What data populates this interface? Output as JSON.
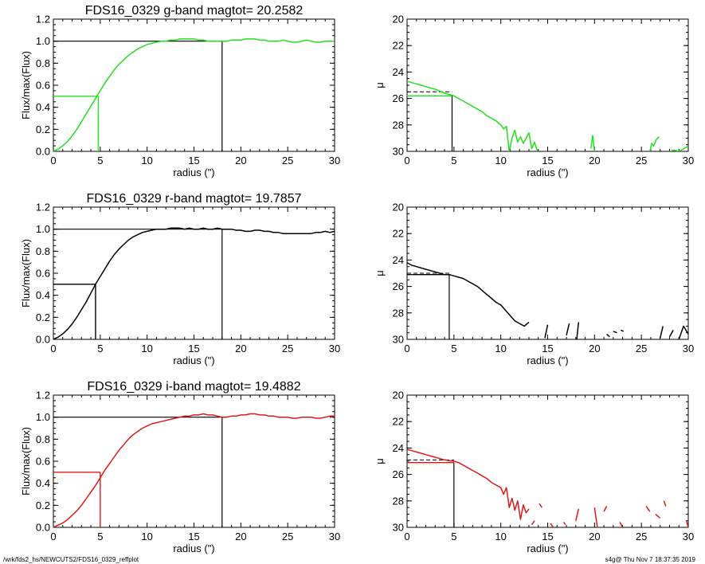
{
  "footer": {
    "path": "/wrk/fds2_hs/NEWCUTS2/FDS16_0329_reffplot",
    "stamp": "s4g@  Thu Nov  7 18:37:35 2019"
  },
  "chart_data": [
    {
      "type": "line",
      "panel": "growth-curve",
      "title": "FDS16_0329 g-band  magtot=     20.2582",
      "xlabel": "radius (\")",
      "ylabel": "Flux/max(Flux)",
      "xlim": [
        0,
        30
      ],
      "ylim": [
        0,
        1.2
      ],
      "xticks": [
        0,
        5,
        10,
        15,
        20,
        25,
        30
      ],
      "yticks": [
        0.0,
        0.2,
        0.4,
        0.6,
        0.8,
        1.0,
        1.2
      ],
      "ytick_labels": [
        "0.0",
        "0.2",
        "0.4",
        "0.6",
        "0.8",
        "1.0",
        "1.2"
      ],
      "color": "#22e01d",
      "x": [
        0,
        0.5,
        1,
        1.5,
        2,
        2.5,
        3,
        3.5,
        4,
        4.5,
        5,
        5.5,
        6,
        6.5,
        7,
        7.5,
        8,
        8.5,
        9,
        9.5,
        10,
        10.5,
        11,
        11.5,
        12,
        12.5,
        13,
        13.5,
        14,
        14.5,
        15,
        15.5,
        16,
        16.5,
        17,
        17.5,
        18,
        18.5,
        19,
        19.5,
        20,
        20.5,
        21,
        21.5,
        22,
        22.5,
        23,
        23.5,
        24,
        24.5,
        25,
        25.5,
        26,
        26.5,
        27,
        27.5,
        28,
        28.5,
        29,
        29.5,
        30
      ],
      "y": [
        0.0,
        0.02,
        0.05,
        0.09,
        0.14,
        0.2,
        0.27,
        0.34,
        0.41,
        0.48,
        0.55,
        0.62,
        0.68,
        0.74,
        0.79,
        0.83,
        0.87,
        0.9,
        0.93,
        0.95,
        0.97,
        0.98,
        0.99,
        1.0,
        1.0,
        1.01,
        1.01,
        1.02,
        1.02,
        1.02,
        1.02,
        1.01,
        1.01,
        1.0,
        1.0,
        1.0,
        1.0,
        1.0,
        1.01,
        1.01,
        1.01,
        1.02,
        1.02,
        1.02,
        1.01,
        1.01,
        1.0,
        1.0,
        1.0,
        1.01,
        1.0,
        0.99,
        0.99,
        1.0,
        1.01,
        1.0,
        0.99,
        0.99,
        1.0,
        1.0,
        1.0
      ],
      "half_light": {
        "r": 4.8,
        "f": 0.5
      },
      "total": {
        "r": 18.0,
        "f": 1.0
      }
    },
    {
      "type": "line",
      "panel": "surface-brightness",
      "title": "",
      "xlabel": "radius (\")",
      "ylabel": "μ",
      "xlim": [
        0,
        30
      ],
      "ylim": [
        30,
        20
      ],
      "yaxis": "inverted",
      "xticks": [
        0,
        5,
        10,
        15,
        20,
        25,
        30
      ],
      "yticks": [
        20,
        22,
        24,
        26,
        28,
        30
      ],
      "color": "#22e01d",
      "x": [
        0,
        0.5,
        1,
        1.5,
        2,
        2.5,
        3,
        3.5,
        4,
        4.5,
        5,
        5.5,
        6,
        6.5,
        7,
        7.5,
        8,
        8.5,
        9,
        9.5,
        10,
        10.3,
        10.6,
        10.9,
        11.2,
        11.5,
        11.8,
        12.1,
        12.4,
        12.7,
        13.0,
        13.3,
        13.6,
        13.9,
        null,
        19.6,
        19.8,
        20.0,
        null,
        25.9,
        26.1,
        26.3,
        26.6,
        26.9,
        null,
        28.0,
        28.5,
        29.0,
        29.5,
        30.0
      ],
      "y": [
        24.7,
        24.8,
        24.9,
        25.0,
        25.1,
        25.2,
        25.3,
        25.45,
        25.6,
        25.7,
        25.8,
        26.0,
        26.2,
        26.4,
        26.6,
        26.8,
        27.0,
        27.3,
        27.5,
        27.7,
        28.0,
        28.3,
        28.1,
        30.0,
        29.0,
        28.4,
        29.3,
        28.9,
        29.4,
        29.0,
        28.6,
        29.8,
        29.3,
        30.0,
        null,
        29.8,
        28.8,
        30.0,
        null,
        30.0,
        29.4,
        29.6,
        29.1,
        28.9,
        null,
        30.0,
        29.9,
        30.0,
        29.8,
        29.6
      ],
      "dashed_level": 25.5,
      "solid_level": 25.8,
      "marker_r": 4.8
    },
    {
      "type": "line",
      "panel": "growth-curve",
      "title": "FDS16_0329 r-band  magtot=     19.7857",
      "xlabel": "radius (\")",
      "ylabel": "Flux/max(Flux)",
      "xlim": [
        0,
        30
      ],
      "ylim": [
        0,
        1.2
      ],
      "xticks": [
        0,
        5,
        10,
        15,
        20,
        25,
        30
      ],
      "yticks": [
        0.0,
        0.2,
        0.4,
        0.6,
        0.8,
        1.0,
        1.2
      ],
      "ytick_labels": [
        "0.0",
        "0.2",
        "0.4",
        "0.6",
        "0.8",
        "1.0",
        "1.2"
      ],
      "color": "#000000",
      "x": [
        0,
        0.5,
        1,
        1.5,
        2,
        2.5,
        3,
        3.5,
        4,
        4.5,
        5,
        5.5,
        6,
        6.5,
        7,
        7.5,
        8,
        8.5,
        9,
        9.5,
        10,
        10.5,
        11,
        11.5,
        12,
        12.5,
        13,
        13.5,
        14,
        14.5,
        15,
        15.5,
        16,
        16.5,
        17,
        17.5,
        18,
        18.5,
        19,
        19.5,
        20,
        20.5,
        21,
        21.5,
        22,
        22.5,
        23,
        23.5,
        24,
        24.5,
        25,
        25.5,
        26,
        26.5,
        27,
        27.5,
        28,
        28.5,
        29,
        29.5,
        30
      ],
      "y": [
        0.0,
        0.02,
        0.05,
        0.09,
        0.14,
        0.2,
        0.27,
        0.34,
        0.42,
        0.5,
        0.57,
        0.64,
        0.71,
        0.77,
        0.82,
        0.86,
        0.9,
        0.93,
        0.95,
        0.97,
        0.98,
        0.99,
        1.0,
        1.0,
        1.0,
        1.01,
        1.01,
        1.01,
        1.0,
        1.01,
        1.0,
        1.0,
        1.01,
        1.0,
        1.0,
        1.01,
        1.0,
        1.0,
        1.0,
        0.99,
        0.99,
        0.98,
        0.98,
        0.99,
        0.99,
        0.98,
        0.98,
        0.97,
        0.97,
        0.96,
        0.96,
        0.96,
        0.96,
        0.96,
        0.96,
        0.96,
        0.97,
        0.97,
        0.98,
        0.97,
        0.98
      ],
      "half_light": {
        "r": 4.5,
        "f": 0.5
      },
      "total": {
        "r": 18.0,
        "f": 1.0
      }
    },
    {
      "type": "line",
      "panel": "surface-brightness",
      "title": "",
      "xlabel": "radius (\")",
      "ylabel": "μ",
      "xlim": [
        0,
        30
      ],
      "ylim": [
        30,
        20
      ],
      "yaxis": "inverted",
      "xticks": [
        0,
        5,
        10,
        15,
        20,
        25,
        30
      ],
      "yticks": [
        20,
        22,
        24,
        26,
        28,
        30
      ],
      "color": "#000000",
      "x": [
        0,
        0.5,
        1,
        1.5,
        2,
        2.5,
        3,
        3.5,
        4,
        4.5,
        5,
        5.5,
        6,
        6.5,
        7,
        7.5,
        8,
        8.5,
        9,
        9.5,
        10,
        10.5,
        11,
        11.5,
        12,
        12.5,
        13,
        null,
        14.7,
        15,
        null,
        17,
        17.3,
        null,
        18.1,
        18.3,
        null,
        21.3,
        21.6,
        null,
        22,
        22.4,
        null,
        22.8,
        23.1,
        null,
        27,
        27.3,
        null,
        28,
        28.4,
        null,
        29.0,
        29.5,
        30.0
      ],
      "y": [
        24.2,
        24.4,
        24.5,
        24.6,
        24.7,
        24.8,
        24.9,
        25.0,
        25.1,
        25.1,
        25.2,
        25.3,
        25.4,
        25.6,
        25.8,
        26.0,
        26.3,
        26.6,
        26.9,
        27.2,
        27.4,
        27.8,
        28.2,
        28.6,
        28.8,
        29.0,
        28.7,
        null,
        29.9,
        28.9,
        null,
        29.7,
        28.8,
        null,
        30.0,
        28.7,
        null,
        29.6,
        29.8,
        null,
        29.4,
        29.5,
        null,
        29.3,
        29.4,
        null,
        29.9,
        29.0,
        null,
        29.8,
        29.3,
        null,
        30.0,
        29.0,
        29.6
      ],
      "dashed_level": 25.0,
      "solid_level": 25.1,
      "marker_r": 4.5
    },
    {
      "type": "line",
      "panel": "growth-curve",
      "title": "FDS16_0329 i-band  magtot=     19.4882",
      "xlabel": "radius (\")",
      "ylabel": "Flux/max(Flux)",
      "xlim": [
        0,
        30
      ],
      "ylim": [
        0,
        1.2
      ],
      "xticks": [
        0,
        5,
        10,
        15,
        20,
        25,
        30
      ],
      "yticks": [
        0.0,
        0.2,
        0.4,
        0.6,
        0.8,
        1.0,
        1.2
      ],
      "ytick_labels": [
        "0.0",
        "0.2",
        "0.4",
        "0.6",
        "0.8",
        "1.0",
        "1.2"
      ],
      "color": "#e01818",
      "x": [
        0,
        0.5,
        1,
        1.5,
        2,
        2.5,
        3,
        3.5,
        4,
        4.5,
        5,
        5.5,
        6,
        6.5,
        7,
        7.5,
        8,
        8.5,
        9,
        9.5,
        10,
        10.5,
        11,
        11.5,
        12,
        12.5,
        13,
        13.5,
        14,
        14.5,
        15,
        15.5,
        16,
        16.5,
        17,
        17.5,
        18,
        18.5,
        19,
        19.5,
        20,
        20.5,
        21,
        21.5,
        22,
        22.5,
        23,
        23.5,
        24,
        24.5,
        25,
        25.5,
        26,
        26.5,
        27,
        27.5,
        28,
        28.5,
        29,
        29.5,
        30
      ],
      "y": [
        0.0,
        0.02,
        0.04,
        0.07,
        0.11,
        0.15,
        0.2,
        0.26,
        0.32,
        0.38,
        0.45,
        0.52,
        0.58,
        0.64,
        0.7,
        0.75,
        0.8,
        0.84,
        0.87,
        0.9,
        0.92,
        0.94,
        0.95,
        0.96,
        0.97,
        0.98,
        0.99,
        1.0,
        1.01,
        1.01,
        1.02,
        1.02,
        1.03,
        1.02,
        1.02,
        1.01,
        1.0,
        1.0,
        1.01,
        1.01,
        1.02,
        1.02,
        1.03,
        1.03,
        1.02,
        1.02,
        1.01,
        1.01,
        1.0,
        1.0,
        1.0,
        0.99,
        0.99,
        1.0,
        1.0,
        1.0,
        0.99,
        0.99,
        1.0,
        1.01,
        1.01
      ],
      "half_light": {
        "r": 5.0,
        "f": 0.5
      },
      "total": {
        "r": 18.0,
        "f": 1.0
      }
    },
    {
      "type": "line",
      "panel": "surface-brightness",
      "title": "",
      "xlabel": "radius (\")",
      "ylabel": "μ",
      "xlim": [
        0,
        30
      ],
      "ylim": [
        30,
        20
      ],
      "yaxis": "inverted",
      "xticks": [
        0,
        5,
        10,
        15,
        20,
        25,
        30
      ],
      "yticks": [
        20,
        22,
        24,
        26,
        28,
        30
      ],
      "color": "#e01818",
      "x": [
        0,
        0.5,
        1,
        1.5,
        2,
        2.5,
        3,
        3.5,
        4,
        4.5,
        5,
        5.5,
        6,
        6.5,
        7,
        7.5,
        8,
        8.5,
        9,
        9.5,
        10,
        10.3,
        10.6,
        10.9,
        11.2,
        11.5,
        11.8,
        12.1,
        12.4,
        12.7,
        13,
        null,
        13.3,
        13.6,
        null,
        14.1,
        14.4,
        null,
        15.3,
        15.6,
        null,
        16.7,
        16.9,
        null,
        18.0,
        18.3,
        null,
        20.0,
        20.3,
        null,
        21.0,
        21.3,
        null,
        22.7,
        23.0,
        null,
        25.5,
        25.9,
        null,
        26.5,
        27.0,
        null,
        27.4,
        27.6,
        null,
        29.8,
        30.0
      ],
      "y": [
        24.1,
        24.2,
        24.3,
        24.4,
        24.5,
        24.6,
        24.7,
        24.8,
        24.9,
        24.95,
        25.0,
        25.1,
        25.3,
        25.5,
        25.7,
        25.9,
        26.1,
        26.3,
        26.6,
        26.8,
        27.0,
        27.5,
        27.0,
        28.5,
        27.8,
        28.7,
        28.0,
        29.4,
        28.3,
        28.9,
        28.6,
        null,
        29.8,
        29.5,
        null,
        28.2,
        28.5,
        null,
        29.7,
        30.0,
        null,
        29.6,
        29.8,
        null,
        29.5,
        28.6,
        null,
        28.5,
        30.0,
        null,
        28.8,
        28.4,
        null,
        29.6,
        30.0,
        null,
        28.4,
        28.8,
        null,
        29.0,
        29.3,
        null,
        28.0,
        28.4,
        null,
        29.5,
        30.0
      ],
      "dashed_level": 24.9,
      "solid_level": 25.1,
      "marker_r": 5.0
    }
  ]
}
